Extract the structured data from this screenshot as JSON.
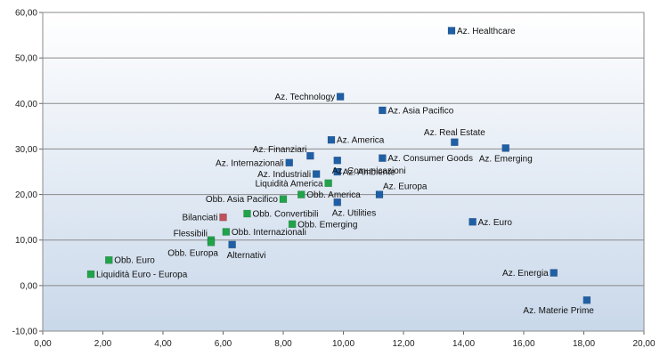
{
  "chart_data": {
    "type": "scatter",
    "title": "",
    "xlabel": "",
    "ylabel": "",
    "xlim": [
      0,
      20
    ],
    "ylim": [
      -10,
      60
    ],
    "x_ticks": [
      "0,00",
      "2,00",
      "4,00",
      "6,00",
      "8,00",
      "10,00",
      "12,00",
      "14,00",
      "16,00",
      "18,00",
      "20,00"
    ],
    "y_ticks": [
      "-10,00",
      "0,00",
      "10,00",
      "20,00",
      "30,00",
      "40,00",
      "50,00",
      "60,00"
    ],
    "grid": "horizontal",
    "legend": "none",
    "colors": {
      "azionari": "#1f5fa6",
      "obbligazionari": "#21a34a",
      "bilanciati": "#c0505a"
    },
    "points": [
      {
        "label": "Az. Healthcare",
        "x": 13.6,
        "y": 56.0,
        "group": "azionari",
        "label_pos": "right"
      },
      {
        "label": "Az. Technology",
        "x": 9.9,
        "y": 41.5,
        "group": "azionari",
        "label_pos": "left"
      },
      {
        "label": "Az. Asia Pacifico",
        "x": 11.3,
        "y": 38.5,
        "group": "azionari",
        "label_pos": "right"
      },
      {
        "label": "Az. Real Estate",
        "x": 13.7,
        "y": 31.5,
        "group": "azionari",
        "label_pos": "above"
      },
      {
        "label": "Az. Emerging",
        "x": 15.4,
        "y": 30.2,
        "group": "azionari",
        "label_pos": "below"
      },
      {
        "label": "Az. America",
        "x": 9.6,
        "y": 32.0,
        "group": "azionari",
        "label_pos": "right"
      },
      {
        "label": "Az. Finanziari",
        "x": 8.9,
        "y": 28.5,
        "group": "azionari",
        "label_pos": "above-left"
      },
      {
        "label": "Az. Internazionali",
        "x": 8.2,
        "y": 27.0,
        "group": "azionari",
        "label_pos": "left"
      },
      {
        "label": "Az. Consumer Goods",
        "x": 11.3,
        "y": 28.0,
        "group": "azionari",
        "label_pos": "right"
      },
      {
        "label": "Az. Comunicazioni",
        "x": 9.8,
        "y": 27.5,
        "group": "azionari",
        "label_pos": "below-right"
      },
      {
        "label": "Az. Industriali",
        "x": 9.1,
        "y": 24.5,
        "group": "azionari",
        "label_pos": "left"
      },
      {
        "label": "Az. Ambiente",
        "x": 9.8,
        "y": 25.0,
        "group": "azionari",
        "label_pos": "right"
      },
      {
        "label": "Az. Europa",
        "x": 11.2,
        "y": 20.0,
        "group": "azionari",
        "label_pos": "above-right"
      },
      {
        "label": "Az. Utilities",
        "x": 9.8,
        "y": 18.3,
        "group": "azionari",
        "label_pos": "below-right"
      },
      {
        "label": "Az. Euro",
        "x": 14.3,
        "y": 14.0,
        "group": "azionari",
        "label_pos": "right"
      },
      {
        "label": "Az. Energia",
        "x": 17.0,
        "y": 2.8,
        "group": "azionari",
        "label_pos": "left"
      },
      {
        "label": "Az. Materie Prime",
        "x": 18.1,
        "y": -3.2,
        "group": "azionari",
        "label_pos": "below-left"
      },
      {
        "label": "Alternativi",
        "x": 6.3,
        "y": 9.0,
        "group": "azionari",
        "label_pos": "below-right"
      },
      {
        "label": "Liquidità America",
        "x": 9.5,
        "y": 22.5,
        "group": "obbligazionari",
        "label_pos": "left"
      },
      {
        "label": "Obb. America",
        "x": 8.6,
        "y": 20.0,
        "group": "obbligazionari",
        "label_pos": "right"
      },
      {
        "label": "Obb. Asia Pacifico",
        "x": 8.0,
        "y": 19.0,
        "group": "obbligazionari",
        "label_pos": "left"
      },
      {
        "label": "Obb. Convertibili",
        "x": 6.8,
        "y": 15.8,
        "group": "obbligazionari",
        "label_pos": "right"
      },
      {
        "label": "Obb. Emerging",
        "x": 8.3,
        "y": 13.5,
        "group": "obbligazionari",
        "label_pos": "right"
      },
      {
        "label": "Obb. Internazionali",
        "x": 6.1,
        "y": 11.8,
        "group": "obbligazionari",
        "label_pos": "right"
      },
      {
        "label": "Flessibili",
        "x": 5.6,
        "y": 10.0,
        "group": "obbligazionari",
        "label_pos": "above-left"
      },
      {
        "label": "Obb. Europa",
        "x": 5.6,
        "y": 9.5,
        "group": "obbligazionari",
        "label_pos": "below-left"
      },
      {
        "label": "Obb. Euro",
        "x": 2.2,
        "y": 5.6,
        "group": "obbligazionari",
        "label_pos": "right"
      },
      {
        "label": "Liquidità Euro - Europa",
        "x": 1.6,
        "y": 2.5,
        "group": "obbligazionari",
        "label_pos": "right"
      },
      {
        "label": "Bilanciati",
        "x": 6.0,
        "y": 15.0,
        "group": "bilanciati",
        "label_pos": "left"
      }
    ]
  }
}
